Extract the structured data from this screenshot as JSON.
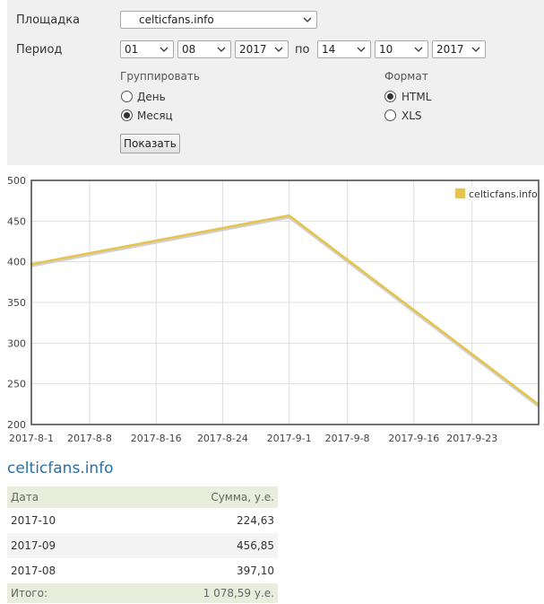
{
  "form": {
    "site_label": "Площадка",
    "site_value": "celticfans.info",
    "period_label": "Период",
    "from_day": "01",
    "from_month": "08",
    "from_year": "2017",
    "to_label": "по",
    "to_day": "14",
    "to_month": "10",
    "to_year": "2017",
    "group_title": "Группировать",
    "group_options": [
      "День",
      "Месяц"
    ],
    "group_selected": "Месяц",
    "format_title": "Формат",
    "format_options": [
      "HTML",
      "XLS"
    ],
    "format_selected": "HTML",
    "submit_label": "Показать"
  },
  "chart_data": {
    "type": "line",
    "x": [
      "2017-8-1",
      "2017-9-1",
      "2017-10-1"
    ],
    "series": [
      {
        "name": "celticfans.info",
        "values": [
          397.1,
          456.85,
          224.63
        ],
        "color": "#e6c44a"
      }
    ],
    "ylim": [
      200,
      500
    ],
    "yticks": [
      200,
      250,
      300,
      350,
      400,
      450,
      500
    ],
    "xticks": [
      "2017-8-1",
      "2017-8-8",
      "2017-8-16",
      "2017-8-24",
      "2017-9-1",
      "2017-9-8",
      "2017-9-16",
      "2017-9-23"
    ],
    "grid": true,
    "legend": "top-right"
  },
  "report": {
    "title": "celticfans.info",
    "col_date": "Дата",
    "col_sum": "Сумма, у.е.",
    "rows": [
      {
        "date": "2017-10",
        "sum": "224,63"
      },
      {
        "date": "2017-09",
        "sum": "456,85"
      },
      {
        "date": "2017-08",
        "sum": "397,10"
      }
    ],
    "total_label": "Итого:",
    "total_value": "1 078,59 у.е."
  }
}
